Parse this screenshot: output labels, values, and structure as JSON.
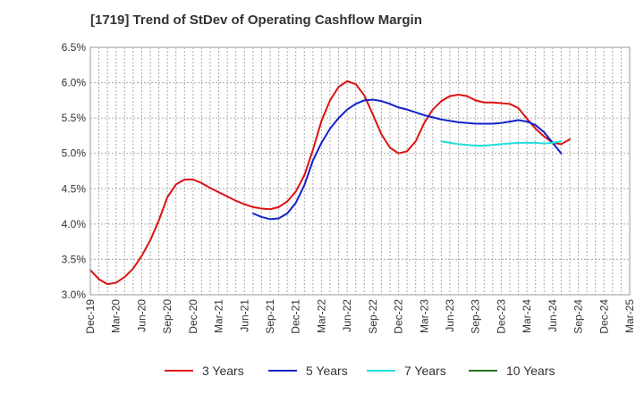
{
  "title": "[1719]  Trend of StDev of Operating Cashflow Margin",
  "chart_data": {
    "type": "line",
    "title": "[1719]  Trend of StDev of Operating Cashflow Margin",
    "xlabel": "",
    "ylabel": "",
    "ylim": [
      3.0,
      6.5
    ],
    "y_ticks": [
      "3.0%",
      "3.5%",
      "4.0%",
      "4.5%",
      "5.0%",
      "5.5%",
      "6.0%",
      "6.5%"
    ],
    "y_tick_values": [
      3.0,
      3.5,
      4.0,
      4.5,
      5.0,
      5.5,
      6.0,
      6.5
    ],
    "x_ticks": [
      "Dec-19",
      "Mar-20",
      "Jun-20",
      "Sep-20",
      "Dec-20",
      "Mar-21",
      "Jun-21",
      "Sep-21",
      "Dec-21",
      "Mar-22",
      "Jun-22",
      "Sep-22",
      "Dec-22",
      "Mar-23",
      "Jun-23",
      "Sep-23",
      "Dec-23",
      "Mar-24",
      "Jun-24",
      "Sep-24",
      "Dec-24",
      "Mar-25"
    ],
    "grid": true,
    "legend_position": "bottom",
    "series": [
      {
        "name": "3 Years",
        "color": "#dd1111",
        "values": [
          3.35,
          3.22,
          3.15,
          3.17,
          3.25,
          3.37,
          3.55,
          3.77,
          4.05,
          4.38,
          4.56,
          4.63,
          4.63,
          4.58,
          4.51,
          4.45,
          4.39,
          4.33,
          4.28,
          4.24,
          4.22,
          4.21,
          4.24,
          4.32,
          4.46,
          4.69,
          5.05,
          5.46,
          5.75,
          5.94,
          6.02,
          5.98,
          5.82,
          5.55,
          5.27,
          5.08,
          5.0,
          5.03,
          5.17,
          5.43,
          5.62,
          5.74,
          5.81,
          5.83,
          5.81,
          5.75,
          5.72,
          5.72,
          5.71,
          5.7,
          5.64,
          5.49,
          5.35,
          5.24,
          5.15,
          5.13,
          5.2
        ]
      },
      {
        "name": "5 Years",
        "color": "#1122cc",
        "values": [
          null,
          null,
          null,
          null,
          null,
          null,
          null,
          null,
          null,
          null,
          null,
          null,
          null,
          null,
          null,
          null,
          null,
          null,
          null,
          4.15,
          4.1,
          4.07,
          4.08,
          4.15,
          4.3,
          4.55,
          4.9,
          5.15,
          5.35,
          5.5,
          5.62,
          5.7,
          5.75,
          5.76,
          5.74,
          5.7,
          5.65,
          5.62,
          5.58,
          5.54,
          5.51,
          5.48,
          5.46,
          5.44,
          5.43,
          5.42,
          5.42,
          5.42,
          5.43,
          5.45,
          5.47,
          5.45,
          5.4,
          5.3,
          5.15,
          5.0
        ]
      },
      {
        "name": "7 Years",
        "color": "#22dddd",
        "values": [
          null,
          null,
          null,
          null,
          null,
          null,
          null,
          null,
          null,
          null,
          null,
          null,
          null,
          null,
          null,
          null,
          null,
          null,
          null,
          null,
          null,
          null,
          null,
          null,
          null,
          null,
          null,
          null,
          null,
          null,
          null,
          null,
          null,
          null,
          null,
          null,
          null,
          null,
          null,
          null,
          null,
          5.17,
          5.15,
          5.13,
          5.12,
          5.11,
          5.11,
          5.12,
          5.13,
          5.14,
          5.15,
          5.15,
          5.15,
          5.14,
          5.15,
          5.17
        ]
      },
      {
        "name": "10 Years",
        "color": "#227722",
        "values": []
      }
    ]
  }
}
